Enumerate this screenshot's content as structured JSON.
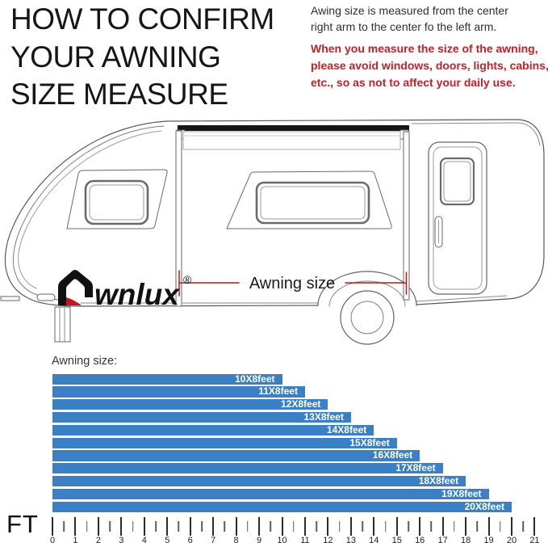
{
  "header": {
    "title_lines": [
      "HOW TO CONFIRM",
      "YOUR AWNING",
      "SIZE MEASURE"
    ],
    "note_lines": [
      "Awing size is measured from the center",
      "right arm to the center fo the left arm."
    ],
    "warning_lines": [
      "When you measure the size of the awning,",
      "please avoid windows, doors, lights, cabins,",
      "etc., so as not to affect your daily use."
    ],
    "warning_color": "#c32027"
  },
  "diagram": {
    "brand": "Awnlux",
    "brand_text_after_mark": "wnlux",
    "registered_mark": "®",
    "dimension_label": "Awning size",
    "annotation_color": "#cc1111",
    "logo_red": "#c41425"
  },
  "chart_data": {
    "type": "bar",
    "orientation": "horizontal",
    "title": "Awning size:",
    "categories": [
      "10X8feet",
      "11X8feet",
      "12X8feet",
      "13X8feet",
      "14X8feet",
      "15X8feet",
      "16X8feet",
      "17X8feet",
      "18X8feet",
      "19X8feet",
      "20X8feet"
    ],
    "values": [
      10,
      11,
      12,
      13,
      14,
      15,
      16,
      17,
      18,
      19,
      20
    ],
    "value_unit": "feet",
    "axis_label": "FT",
    "axis": {
      "min": 0,
      "max": 21,
      "major_tick": 1,
      "minor_tick": 0.5
    },
    "tick_labels": [
      "0",
      "1",
      "2",
      "3",
      "4",
      "5",
      "6",
      "7",
      "8",
      "9",
      "10",
      "11",
      "12",
      "13",
      "14",
      "15",
      "16",
      "17",
      "18",
      "19",
      "20",
      "21"
    ],
    "bar_color": "#3b80c4",
    "bar_label_color": "#ffffff",
    "grid": false,
    "legend": null
  }
}
